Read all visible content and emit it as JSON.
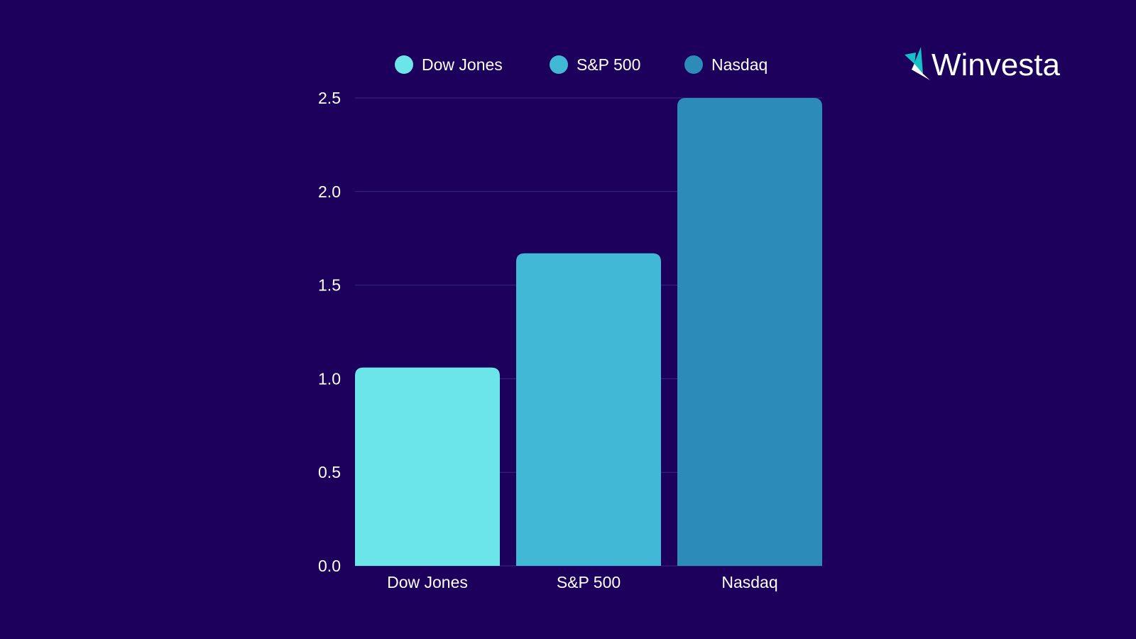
{
  "brand": {
    "name": "Winvesta",
    "logo_colors": [
      "#15c1c6",
      "#ffffff"
    ]
  },
  "colors": {
    "background": "#1c005c",
    "grid": "#3a2a7a"
  },
  "chart_data": {
    "type": "bar",
    "title": "",
    "xlabel": "",
    "ylabel": "",
    "categories": [
      "Dow Jones",
      "S&P 500",
      "Nasdaq"
    ],
    "values": [
      1.06,
      1.67,
      2.5
    ],
    "colors": [
      "#6ce5e8",
      "#41b8d5",
      "#2d8bba"
    ],
    "legend": {
      "entries": [
        "Dow Jones",
        "S&P 500",
        "Nasdaq"
      ],
      "placement": "top-center"
    },
    "ylim": [
      0,
      2.5
    ],
    "yticks": [
      "0.0",
      "0.5",
      "1.0",
      "1.5",
      "2.0",
      "2.5"
    ],
    "grid": true
  }
}
